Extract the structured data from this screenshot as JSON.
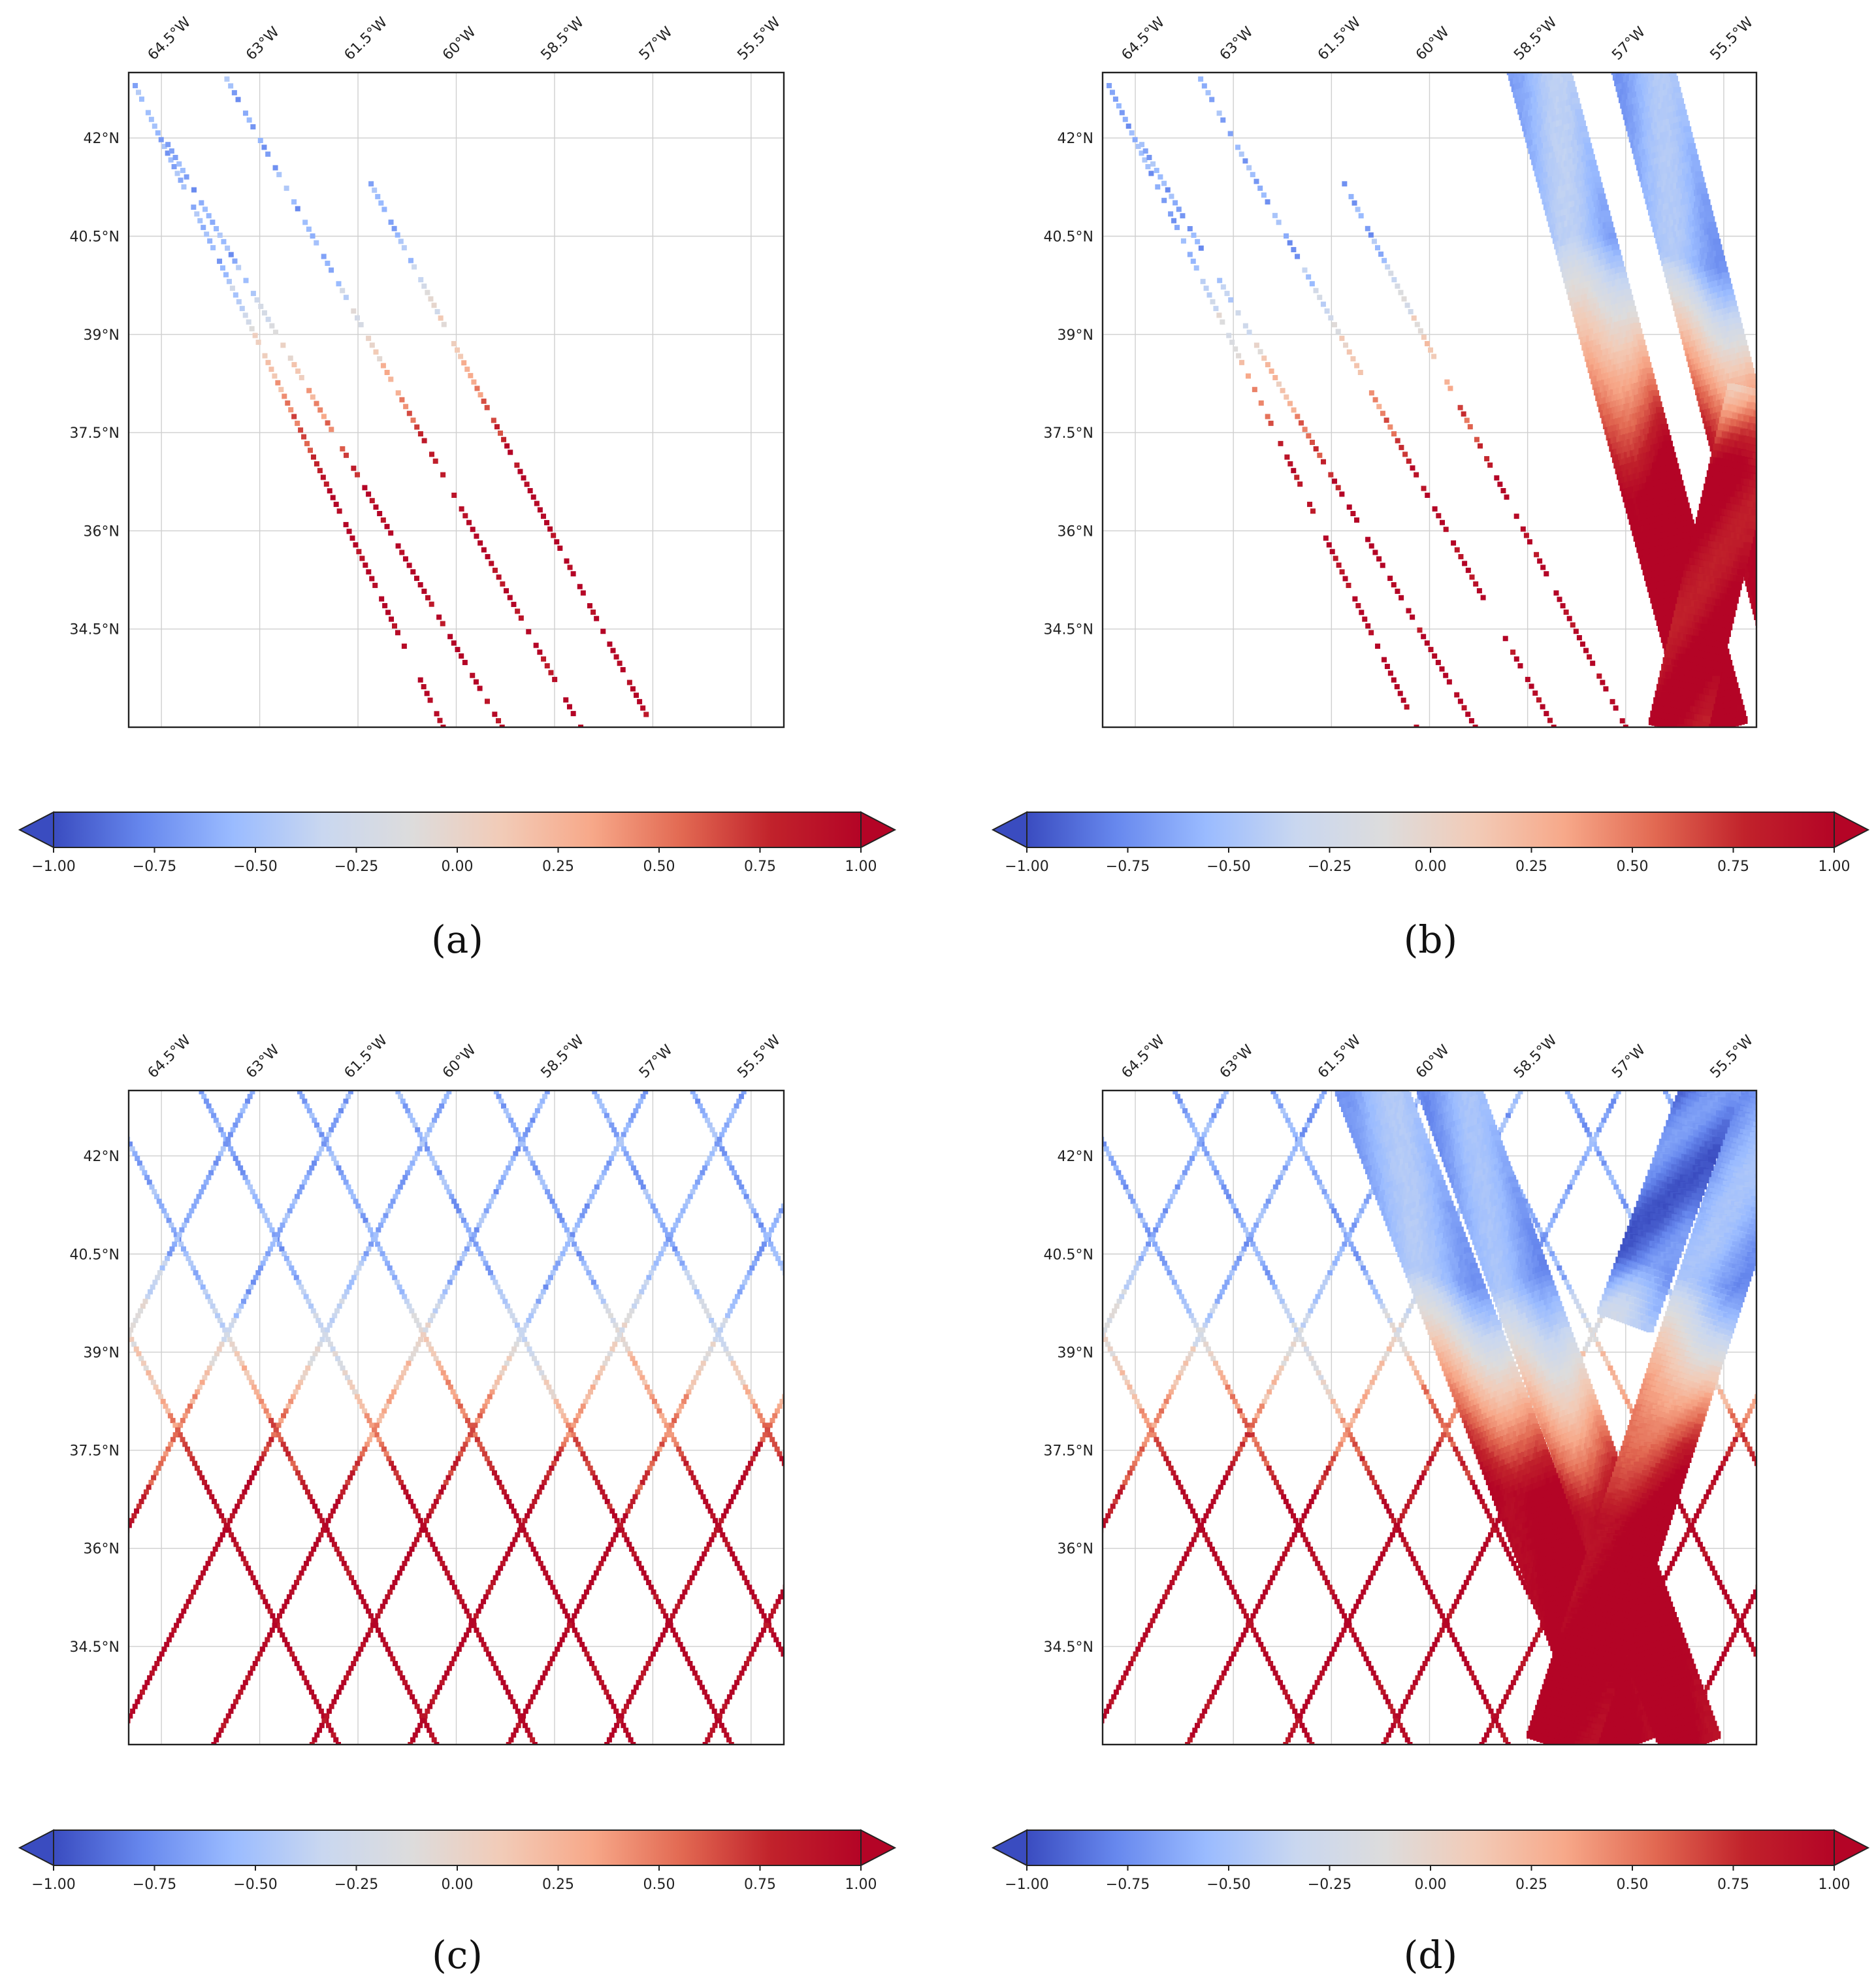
{
  "colors": {
    "colormap_stops": [
      "#3a4cc0",
      "#6788ee",
      "#9abbff",
      "#c9d7f0",
      "#dddcdc",
      "#f2cbb7",
      "#f7a889",
      "#e26952",
      "#c1222b",
      "#b40426"
    ]
  },
  "chart_data": [
    {
      "panel_label": "(a)",
      "type": "scatter",
      "content": "two satellite nadir tracks",
      "x_ticks": [
        "64.5°W",
        "63°W",
        "61.5°W",
        "60°W",
        "58.5°W",
        "57°W",
        "55.5°W"
      ],
      "x_tick_values": [
        -64.5,
        -63,
        -61.5,
        -60,
        -58.5,
        -57,
        -55.5
      ],
      "y_ticks": [
        "42°N",
        "40.5°N",
        "39°N",
        "37.5°N",
        "36°N",
        "34.5°N"
      ],
      "y_tick_values": [
        42,
        40.5,
        39,
        37.5,
        36,
        34.5
      ],
      "xlim": [
        -65,
        -55
      ],
      "ylim": [
        33,
        43
      ],
      "colorbar": {
        "min": -1.0,
        "max": 1.0,
        "extend": "both",
        "ticks": [
          "−1.00",
          "−0.75",
          "−0.50",
          "−0.25",
          "0.00",
          "0.25",
          "0.50",
          "0.75",
          "1.00"
        ]
      }
    },
    {
      "panel_label": "(b)",
      "type": "scatter",
      "content": "two nadir tracks plus wide swath",
      "x_ticks": [
        "64.5°W",
        "63°W",
        "61.5°W",
        "60°W",
        "58.5°W",
        "57°W",
        "55.5°W"
      ],
      "x_tick_values": [
        -64.5,
        -63,
        -61.5,
        -60,
        -58.5,
        -57,
        -55.5
      ],
      "y_ticks": [
        "42°N",
        "40.5°N",
        "39°N",
        "37.5°N",
        "36°N",
        "34.5°N"
      ],
      "y_tick_values": [
        42,
        40.5,
        39,
        37.5,
        36,
        34.5
      ],
      "xlim": [
        -65,
        -55
      ],
      "ylim": [
        33,
        43
      ],
      "colorbar": {
        "min": -1.0,
        "max": 1.0,
        "extend": "both",
        "ticks": [
          "−1.00",
          "−0.75",
          "−0.50",
          "−0.25",
          "0.00",
          "0.25",
          "0.50",
          "0.75",
          "1.00"
        ]
      }
    },
    {
      "panel_label": "(c)",
      "type": "scatter",
      "content": "dense crossing nadir tracks",
      "x_ticks": [
        "64.5°W",
        "63°W",
        "61.5°W",
        "60°W",
        "58.5°W",
        "57°W",
        "55.5°W"
      ],
      "x_tick_values": [
        -64.5,
        -63,
        -61.5,
        -60,
        -58.5,
        -57,
        -55.5
      ],
      "y_ticks": [
        "42°N",
        "40.5°N",
        "39°N",
        "37.5°N",
        "36°N",
        "34.5°N"
      ],
      "y_tick_values": [
        42,
        40.5,
        39,
        37.5,
        36,
        34.5
      ],
      "xlim": [
        -65,
        -55
      ],
      "ylim": [
        33,
        43
      ],
      "colorbar": {
        "min": -1.0,
        "max": 1.0,
        "extend": "both",
        "ticks": [
          "−1.00",
          "−0.75",
          "−0.50",
          "−0.25",
          "0.00",
          "0.25",
          "0.50",
          "0.75",
          "1.00"
        ]
      }
    },
    {
      "panel_label": "(d)",
      "type": "scatter",
      "content": "dense crossing nadir tracks plus two wide swaths",
      "x_ticks": [
        "64.5°W",
        "63°W",
        "61.5°W",
        "60°W",
        "58.5°W",
        "57°W",
        "55.5°W"
      ],
      "x_tick_values": [
        -64.5,
        -63,
        -61.5,
        -60,
        -58.5,
        -57,
        -55.5
      ],
      "y_ticks": [
        "42°N",
        "40.5°N",
        "39°N",
        "37.5°N",
        "36°N",
        "34.5°N"
      ],
      "y_tick_values": [
        42,
        40.5,
        39,
        37.5,
        36,
        34.5
      ],
      "xlim": [
        -65,
        -55
      ],
      "ylim": [
        33,
        43
      ],
      "colorbar": {
        "min": -1.0,
        "max": 1.0,
        "extend": "both",
        "ticks": [
          "−1.00",
          "−0.75",
          "−0.50",
          "−0.25",
          "0.00",
          "0.25",
          "0.50",
          "0.75",
          "1.00"
        ]
      }
    }
  ]
}
